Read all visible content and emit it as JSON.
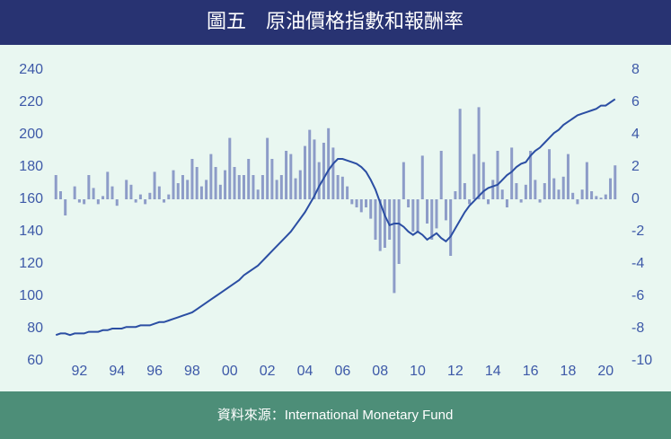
{
  "chart_data": {
    "type": "combo",
    "title": "圖五　原油價格指數和報酬率",
    "source": "資料來源：International Monetary Fund",
    "x": [
      1990.75,
      1991,
      1991.25,
      1991.5,
      1991.75,
      1992,
      1992.25,
      1992.5,
      1992.75,
      1993,
      1993.25,
      1993.5,
      1993.75,
      1994,
      1994.25,
      1994.5,
      1994.75,
      1995,
      1995.25,
      1995.5,
      1995.75,
      1996,
      1996.25,
      1996.5,
      1996.75,
      1997,
      1997.25,
      1997.5,
      1997.75,
      1998,
      1998.25,
      1998.5,
      1998.75,
      1999,
      1999.25,
      1999.5,
      1999.75,
      2000,
      2000.25,
      2000.5,
      2000.75,
      2001,
      2001.25,
      2001.5,
      2001.75,
      2002,
      2002.25,
      2002.5,
      2002.75,
      2003,
      2003.25,
      2003.5,
      2003.75,
      2004,
      2004.25,
      2004.5,
      2004.75,
      2005,
      2005.25,
      2005.5,
      2005.75,
      2006,
      2006.25,
      2006.5,
      2006.75,
      2007,
      2007.25,
      2007.5,
      2007.75,
      2008,
      2008.25,
      2008.5,
      2008.75,
      2009,
      2009.25,
      2009.5,
      2009.75,
      2010,
      2010.25,
      2010.5,
      2010.75,
      2011,
      2011.25,
      2011.5,
      2011.75,
      2012,
      2012.25,
      2012.5,
      2012.75,
      2013,
      2013.25,
      2013.5,
      2013.75,
      2014,
      2014.25,
      2014.5,
      2014.75,
      2015,
      2015.25,
      2015.5,
      2015.75,
      2016,
      2016.25,
      2016.5,
      2016.75,
      2017,
      2017.25,
      2017.5,
      2017.75,
      2018,
      2018.25,
      2018.5,
      2018.75,
      2019,
      2019.25,
      2019.5,
      2019.75,
      2020,
      2020.25,
      2020.5
    ],
    "series": [
      {
        "type": "bar",
        "axis": "y2",
        "color": "#8d9cc8",
        "values": [
          1.5,
          0.5,
          -1,
          0,
          0.8,
          -0.2,
          -0.3,
          1.5,
          0.7,
          -0.3,
          0.2,
          1.7,
          0.8,
          -0.4,
          0,
          1.2,
          0.9,
          -0.2,
          0.3,
          -0.3,
          0.4,
          1.7,
          0.8,
          -0.2,
          0.3,
          1.8,
          1,
          1.5,
          1.2,
          2.5,
          2,
          0.8,
          1.2,
          2.8,
          2,
          0.9,
          1.8,
          3.8,
          2,
          1.5,
          1.5,
          2.5,
          1.5,
          0.6,
          1.5,
          3.8,
          2.5,
          1.2,
          1.5,
          3,
          2.8,
          1.3,
          1.8,
          3.3,
          4.3,
          3.7,
          2.3,
          3.5,
          4.4,
          3.2,
          1.5,
          1.4,
          0.8,
          -0.3,
          -0.5,
          -0.8,
          -0.5,
          -1.2,
          -2.5,
          -3.2,
          -3,
          -2.5,
          -5.8,
          -4,
          2.3,
          -0.5,
          -2,
          -2,
          2.7,
          -1.5,
          -2.5,
          -1.8,
          3,
          -1.3,
          -3.5,
          0.5,
          5.6,
          1,
          -0.3,
          2.8,
          5.7,
          2.3,
          -0.3,
          1.2,
          3,
          0.6,
          -0.5,
          3.2,
          1,
          -0.2,
          0.9,
          3,
          1.2,
          -0.2,
          1,
          3.1,
          1.3,
          0.6,
          1.4,
          2.8,
          0.4,
          -0.3,
          0.6,
          2.3,
          0.5,
          0.2,
          0.1,
          0.3,
          1.3,
          2.1
        ]
      },
      {
        "type": "line",
        "color": "#2b4ea3",
        "values": [
          76,
          77,
          77,
          76,
          77,
          77,
          77,
          78,
          78,
          78,
          79,
          79,
          80,
          80,
          80,
          81,
          81,
          81,
          82,
          82,
          82,
          83,
          84,
          84,
          85,
          86,
          87,
          88,
          89,
          90,
          92,
          94,
          96,
          98,
          100,
          102,
          104,
          106,
          108,
          110,
          113,
          115,
          117,
          119,
          122,
          125,
          128,
          131,
          134,
          137,
          140,
          144,
          148,
          152,
          157,
          162,
          168,
          173,
          178,
          182,
          185,
          185,
          184,
          183,
          182,
          180,
          177,
          172,
          166,
          158,
          150,
          144,
          145,
          145,
          143,
          140,
          138,
          140,
          138,
          135,
          137,
          139,
          136,
          134,
          137,
          142,
          147,
          152,
          156,
          159,
          162,
          165,
          167,
          168,
          169,
          172,
          175,
          177,
          180,
          182,
          183,
          187,
          190,
          192,
          195,
          198,
          201,
          203,
          206,
          208,
          210,
          212,
          213,
          214,
          215,
          216,
          218,
          218,
          220,
          222
        ]
      }
    ],
    "xlim": [
      1990.5,
      2020.75
    ],
    "xticks": [
      {
        "value": 1992,
        "label": "92"
      },
      {
        "value": 1994,
        "label": "94"
      },
      {
        "value": 1996,
        "label": "96"
      },
      {
        "value": 1998,
        "label": "98"
      },
      {
        "value": 2000,
        "label": "00"
      },
      {
        "value": 2002,
        "label": "02"
      },
      {
        "value": 2004,
        "label": "04"
      },
      {
        "value": 2006,
        "label": "06"
      },
      {
        "value": 2008,
        "label": "08"
      },
      {
        "value": 2010,
        "label": "10"
      },
      {
        "value": 2012,
        "label": "12"
      },
      {
        "value": 2014,
        "label": "14"
      },
      {
        "value": 2016,
        "label": "16"
      },
      {
        "value": 2018,
        "label": "18"
      },
      {
        "value": 2020,
        "label": "20"
      }
    ],
    "ylim": [
      60,
      240
    ],
    "yticks": [
      60,
      80,
      100,
      120,
      140,
      160,
      180,
      200,
      220,
      240
    ],
    "y2lim": [
      -10,
      8
    ],
    "y2ticks": [
      -10,
      -8,
      -6,
      -4,
      -2,
      0,
      2,
      4,
      6,
      8
    ]
  }
}
